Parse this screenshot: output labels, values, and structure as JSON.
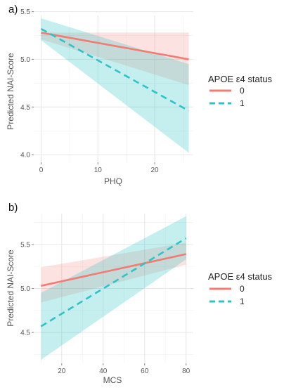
{
  "colors": {
    "series0": "#F07C73",
    "series1": "#2EC4C6"
  },
  "chart_data": [
    {
      "panel_label": "a)",
      "type": "line",
      "xlabel": "PHQ",
      "ylabel": "Predicted NAI-Score",
      "xlim": [
        -1.3,
        26.8
      ],
      "ylim": [
        3.92,
        5.46
      ],
      "xticks": [
        0,
        10,
        20
      ],
      "yticks": [
        4.0,
        4.5,
        5.0,
        5.5
      ],
      "ytick_labels": [
        "4.0",
        "4.5",
        "5.0",
        "5.5"
      ],
      "grid": true,
      "legend": {
        "title": "APOE ε4 status",
        "position": "right",
        "entries": [
          "0",
          "1"
        ]
      },
      "series": [
        {
          "name": "0",
          "style": "solid",
          "x": [
            0,
            26
          ],
          "y": [
            5.28,
            5.0
          ],
          "ci_lower": [
            5.21,
            4.73
          ],
          "ci_upper": [
            5.28,
            5.28
          ]
        },
        {
          "name": "1",
          "style": "dashed",
          "x": [
            0,
            26
          ],
          "y": [
            5.32,
            4.46
          ],
          "ci_lower": [
            5.2,
            4.02
          ],
          "ci_upper": [
            5.43,
            4.95
          ]
        }
      ]
    },
    {
      "panel_label": "b)",
      "type": "line",
      "xlabel": "MCS",
      "ylabel": "Predicted NAI-Score",
      "xlim": [
        6.5,
        83.5
      ],
      "ylim": [
        4.15,
        5.85
      ],
      "xticks": [
        20,
        40,
        60,
        80
      ],
      "yticks": [
        4.5,
        5.0,
        5.5
      ],
      "ytick_labels": [
        "4.5",
        "5.0",
        "5.5"
      ],
      "grid": true,
      "legend": {
        "title": "APOE ε4 status",
        "position": "right",
        "entries": [
          "0",
          "1"
        ]
      },
      "series": [
        {
          "name": "0",
          "style": "solid",
          "x": [
            10,
            80
          ],
          "y": [
            5.03,
            5.39
          ],
          "ci_lower": [
            4.84,
            5.27
          ],
          "ci_upper": [
            5.24,
            5.52
          ]
        },
        {
          "name": "1",
          "style": "dashed",
          "x": [
            10,
            80
          ],
          "y": [
            4.57,
            5.57
          ],
          "ci_lower": [
            4.19,
            5.33
          ],
          "ci_upper": [
            4.95,
            5.82
          ]
        }
      ]
    }
  ]
}
